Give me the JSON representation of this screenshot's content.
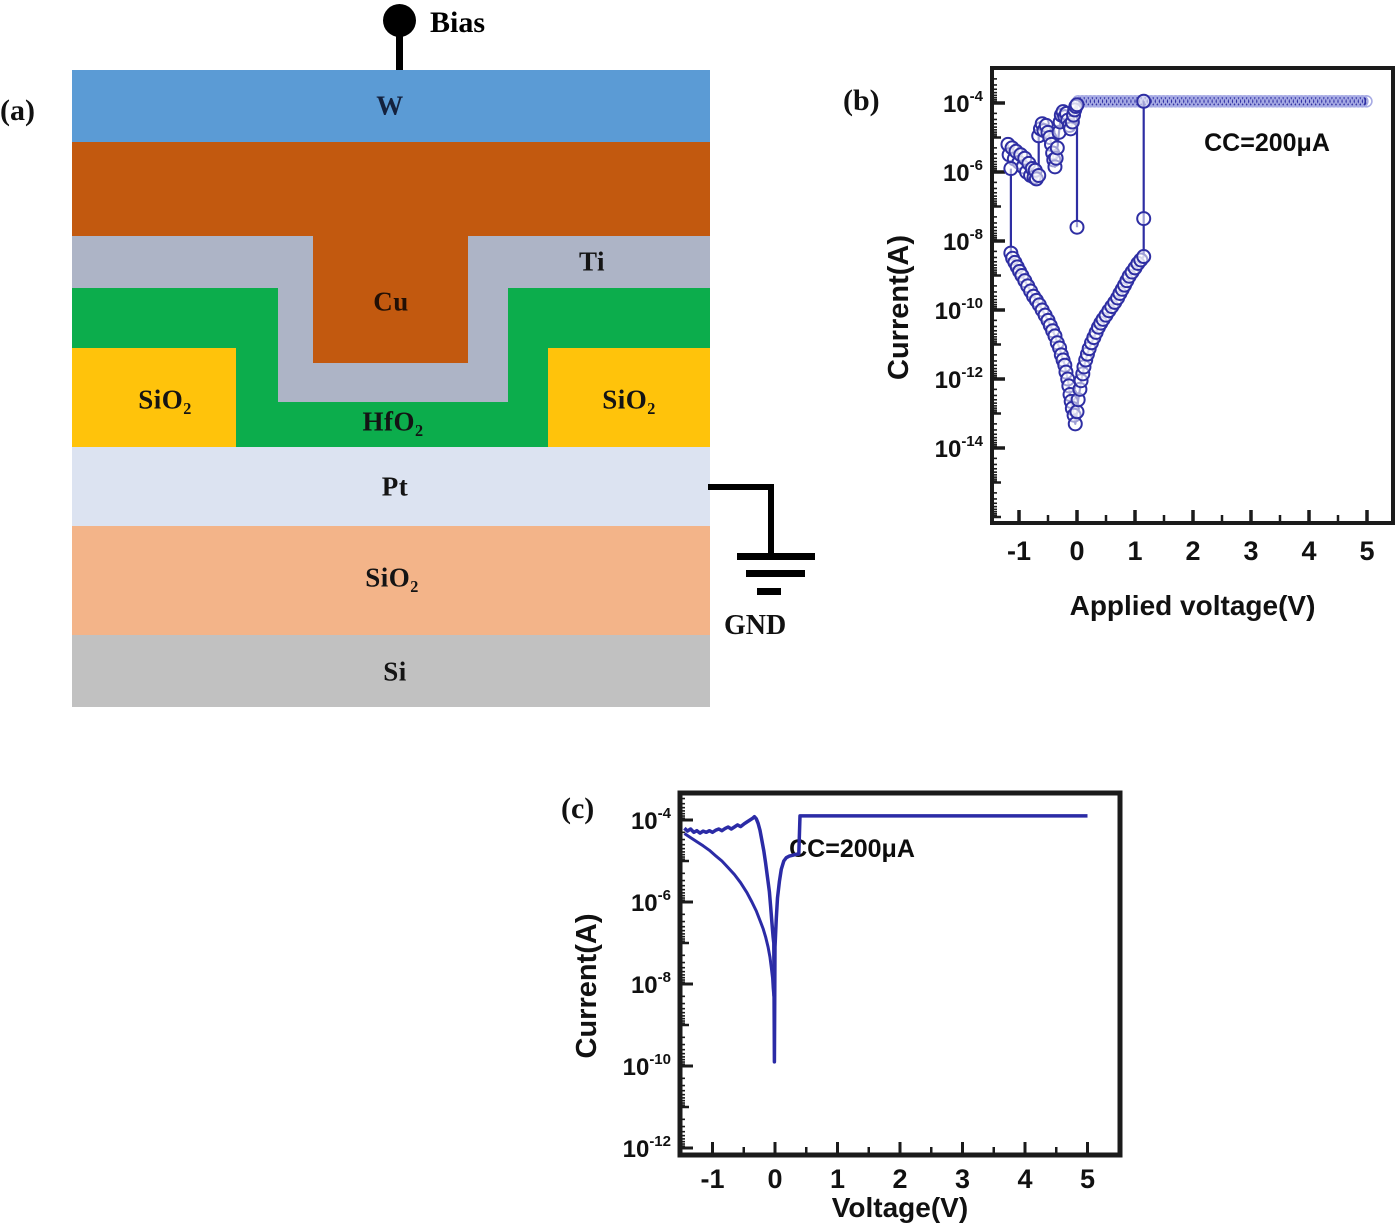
{
  "panel_a": {
    "label": "(a)",
    "bias": {
      "label": "Bias"
    },
    "gnd": {
      "label": "GND"
    },
    "layers": {
      "w": {
        "name": "W",
        "color": "#5B9BD5"
      },
      "cu": {
        "name": "Cu",
        "color": "#C2590F"
      },
      "ti": {
        "name": "Ti",
        "color": "#ADB4C6"
      },
      "hfo2": {
        "name": "HfO₂",
        "color": "#0CAD4C"
      },
      "sio2_left": {
        "name": "SiO₂",
        "color": "#FFC30B"
      },
      "sio2_right": {
        "name": "SiO₂",
        "color": "#FFC30B"
      },
      "pt": {
        "name": "Pt",
        "color": "#DCE3F1"
      },
      "sio2_bottom": {
        "name": "SiO₂",
        "color": "#F3B489"
      },
      "si": {
        "name": "Si",
        "color": "#C1C1C1"
      }
    }
  },
  "panel_b": {
    "label": "(b)"
  },
  "panel_c": {
    "label": "(c)"
  },
  "chart_data": [
    {
      "panel": "b",
      "type": "scatter",
      "title": "",
      "xlabel": "Applied voltage(V)",
      "ylabel": "Current(A)",
      "annotation": "CC=200μA",
      "line_color": "#2E2EA3",
      "x_ticks": [
        -1,
        0,
        1,
        2,
        3,
        4,
        5
      ],
      "y_tick_exponents": [
        -4,
        -6,
        -8,
        -10,
        -12,
        -14
      ],
      "xlim": [
        -1.47,
        5.45
      ],
      "ylim_log": [
        -16.2,
        -3.0
      ],
      "y_scale": "log10(A)",
      "series": [
        {
          "name": "compliance-current-band",
          "marker": "braid",
          "lw": 10,
          "v_start": 0.02,
          "v_end": 5.0,
          "step": 0.07,
          "log_i": -3.95
        },
        {
          "name": "set-branch",
          "marker": "open",
          "lw": 2.2,
          "points": [
            [
              -1.19,
              -5.2
            ],
            [
              -1.17,
              -5.5
            ],
            [
              -1.12,
              -5.3
            ],
            [
              -1.08,
              -5.62
            ],
            [
              -1.05,
              -5.4
            ],
            [
              -1.0,
              -5.72
            ],
            [
              -0.97,
              -5.5
            ],
            [
              -0.93,
              -5.85
            ],
            [
              -0.9,
              -5.6
            ],
            [
              -0.87,
              -6.0
            ],
            [
              -0.83,
              -5.75
            ],
            [
              -0.8,
              -6.1
            ],
            [
              -0.77,
              -5.9
            ],
            [
              -0.74,
              -6.15
            ],
            [
              -0.72,
              -5.95
            ],
            [
              -0.7,
              -6.2
            ],
            [
              -0.66,
              -6.1
            ],
            [
              -0.66,
              -4.95
            ],
            [
              -0.63,
              -4.75
            ],
            [
              -0.6,
              -4.6
            ],
            [
              -0.57,
              -4.8
            ],
            [
              -0.53,
              -4.65
            ],
            [
              -0.5,
              -4.85
            ],
            [
              -0.47,
              -5.0
            ],
            [
              -0.44,
              -5.2
            ],
            [
              -0.42,
              -5.45
            ],
            [
              -0.4,
              -5.65
            ],
            [
              -0.38,
              -5.85
            ],
            [
              -0.36,
              -5.6
            ],
            [
              -0.34,
              -5.3
            ],
            [
              -0.31,
              -4.85
            ],
            [
              -0.29,
              -4.55
            ],
            [
              -0.27,
              -4.35
            ],
            [
              -0.24,
              -4.25
            ],
            [
              -0.21,
              -4.4
            ],
            [
              -0.18,
              -4.3
            ],
            [
              -0.16,
              -4.5
            ],
            [
              -0.13,
              -4.65
            ],
            [
              -0.11,
              -4.75
            ],
            [
              -0.08,
              -4.55
            ],
            [
              -0.06,
              -4.35
            ],
            [
              -0.04,
              -4.2
            ],
            [
              -0.02,
              -4.1
            ],
            [
              0.0,
              -4.05
            ],
            [
              0.0,
              -7.6
            ]
          ]
        },
        {
          "name": "hrs-loop",
          "marker": "open",
          "lw": 2.2,
          "points": [
            [
              -1.14,
              -5.9
            ],
            [
              -1.14,
              -8.35
            ],
            [
              -1.11,
              -8.5
            ],
            [
              -1.07,
              -8.62
            ],
            [
              -1.03,
              -8.75
            ],
            [
              -0.99,
              -8.88
            ],
            [
              -0.95,
              -9.0
            ],
            [
              -0.9,
              -9.15
            ],
            [
              -0.85,
              -9.3
            ],
            [
              -0.8,
              -9.45
            ],
            [
              -0.75,
              -9.6
            ],
            [
              -0.7,
              -9.72
            ],
            [
              -0.65,
              -9.85
            ],
            [
              -0.6,
              -10.0
            ],
            [
              -0.55,
              -10.15
            ],
            [
              -0.5,
              -10.3
            ],
            [
              -0.46,
              -10.45
            ],
            [
              -0.42,
              -10.6
            ],
            [
              -0.38,
              -10.75
            ],
            [
              -0.34,
              -10.95
            ],
            [
              -0.3,
              -11.1
            ],
            [
              -0.27,
              -11.3
            ],
            [
              -0.24,
              -11.45
            ],
            [
              -0.21,
              -11.6
            ],
            [
              -0.19,
              -11.8
            ],
            [
              -0.16,
              -12.0
            ],
            [
              -0.14,
              -12.2
            ],
            [
              -0.12,
              -12.45
            ],
            [
              -0.1,
              -12.65
            ],
            [
              -0.08,
              -12.85
            ],
            [
              -0.05,
              -13.05
            ],
            [
              -0.03,
              -13.3
            ],
            [
              0.0,
              -12.95
            ],
            [
              0.02,
              -12.6
            ],
            [
              0.05,
              -12.3
            ],
            [
              0.07,
              -12.05
            ],
            [
              0.1,
              -11.85
            ],
            [
              0.12,
              -11.65
            ],
            [
              0.15,
              -11.45
            ],
            [
              0.18,
              -11.28
            ],
            [
              0.21,
              -11.12
            ],
            [
              0.25,
              -10.95
            ],
            [
              0.29,
              -10.8
            ],
            [
              0.33,
              -10.65
            ],
            [
              0.37,
              -10.5
            ],
            [
              0.41,
              -10.38
            ],
            [
              0.45,
              -10.27
            ],
            [
              0.5,
              -10.15
            ],
            [
              0.55,
              -10.02
            ],
            [
              0.6,
              -9.9
            ],
            [
              0.65,
              -9.78
            ],
            [
              0.7,
              -9.65
            ],
            [
              0.74,
              -9.52
            ],
            [
              0.78,
              -9.4
            ],
            [
              0.82,
              -9.28
            ],
            [
              0.86,
              -9.15
            ],
            [
              0.9,
              -9.02
            ],
            [
              0.95,
              -8.9
            ],
            [
              1.0,
              -8.78
            ],
            [
              1.05,
              -8.65
            ],
            [
              1.1,
              -8.55
            ],
            [
              1.15,
              -8.45
            ],
            [
              1.15,
              -7.35
            ],
            [
              1.15,
              -3.95
            ]
          ]
        }
      ]
    },
    {
      "panel": "c",
      "type": "line",
      "title": "",
      "xlabel": "Voltage(V)",
      "ylabel": "Current(A)",
      "annotation": "CC=200μA",
      "line_color": "#2B2BA6",
      "x_ticks": [
        -1,
        0,
        1,
        2,
        3,
        4,
        5
      ],
      "y_tick_exponents": [
        -4,
        -6,
        -8,
        -10,
        -12
      ],
      "xlim": [
        -1.52,
        5.52
      ],
      "ylim_log": [
        -12.2,
        -3.35
      ],
      "y_scale": "log10(A)",
      "series": [
        {
          "name": "sweep-main",
          "marker": "none",
          "lw": 3.5,
          "points": [
            [
              -1.45,
              -4.2
            ],
            [
              -1.4,
              -4.27
            ],
            [
              -1.35,
              -4.22
            ],
            [
              -1.3,
              -4.3
            ],
            [
              -1.25,
              -4.26
            ],
            [
              -1.2,
              -4.32
            ],
            [
              -1.15,
              -4.27
            ],
            [
              -1.1,
              -4.3
            ],
            [
              -1.05,
              -4.26
            ],
            [
              -1.0,
              -4.3
            ],
            [
              -0.95,
              -4.25
            ],
            [
              -0.9,
              -4.22
            ],
            [
              -0.85,
              -4.26
            ],
            [
              -0.8,
              -4.21
            ],
            [
              -0.75,
              -4.17
            ],
            [
              -0.7,
              -4.22
            ],
            [
              -0.65,
              -4.17
            ],
            [
              -0.6,
              -4.12
            ],
            [
              -0.55,
              -4.16
            ],
            [
              -0.5,
              -4.1
            ],
            [
              -0.45,
              -4.05
            ],
            [
              -0.4,
              -4.0
            ],
            [
              -0.36,
              -3.96
            ],
            [
              -0.33,
              -3.92
            ],
            [
              -0.3,
              -3.97
            ],
            [
              -0.27,
              -4.08
            ],
            [
              -0.24,
              -4.25
            ],
            [
              -0.21,
              -4.5
            ],
            [
              -0.18,
              -4.75
            ],
            [
              -0.15,
              -5.05
            ],
            [
              -0.12,
              -5.4
            ],
            [
              -0.09,
              -5.75
            ],
            [
              -0.07,
              -6.1
            ],
            [
              -0.05,
              -6.5
            ],
            [
              -0.03,
              -6.85
            ],
            [
              -0.02,
              -7.0
            ],
            [
              -0.01,
              -9.9
            ],
            [
              0.0,
              -7.1
            ],
            [
              0.02,
              -6.4
            ],
            [
              0.04,
              -5.9
            ],
            [
              0.07,
              -5.5
            ],
            [
              0.1,
              -5.2
            ],
            [
              0.14,
              -5.0
            ],
            [
              0.18,
              -4.92
            ],
            [
              0.23,
              -4.88
            ],
            [
              0.28,
              -4.86
            ],
            [
              0.33,
              -4.84
            ],
            [
              0.38,
              -4.83
            ],
            [
              0.4,
              -3.9
            ],
            [
              5.0,
              -3.9
            ]
          ]
        },
        {
          "name": "sweep-lower-branch",
          "marker": "none",
          "lw": 3,
          "points": [
            [
              -1.45,
              -4.33
            ],
            [
              -1.35,
              -4.43
            ],
            [
              -1.25,
              -4.53
            ],
            [
              -1.15,
              -4.63
            ],
            [
              -1.05,
              -4.74
            ],
            [
              -0.95,
              -4.87
            ],
            [
              -0.85,
              -5.0
            ],
            [
              -0.75,
              -5.16
            ],
            [
              -0.65,
              -5.33
            ],
            [
              -0.55,
              -5.53
            ],
            [
              -0.45,
              -5.77
            ],
            [
              -0.37,
              -6.0
            ],
            [
              -0.3,
              -6.22
            ],
            [
              -0.24,
              -6.45
            ],
            [
              -0.19,
              -6.65
            ],
            [
              -0.15,
              -6.85
            ],
            [
              -0.11,
              -7.1
            ],
            [
              -0.08,
              -7.35
            ],
            [
              -0.06,
              -7.6
            ],
            [
              -0.04,
              -7.85
            ],
            [
              -0.03,
              -8.1
            ],
            [
              -0.02,
              -8.3
            ]
          ]
        }
      ]
    }
  ]
}
